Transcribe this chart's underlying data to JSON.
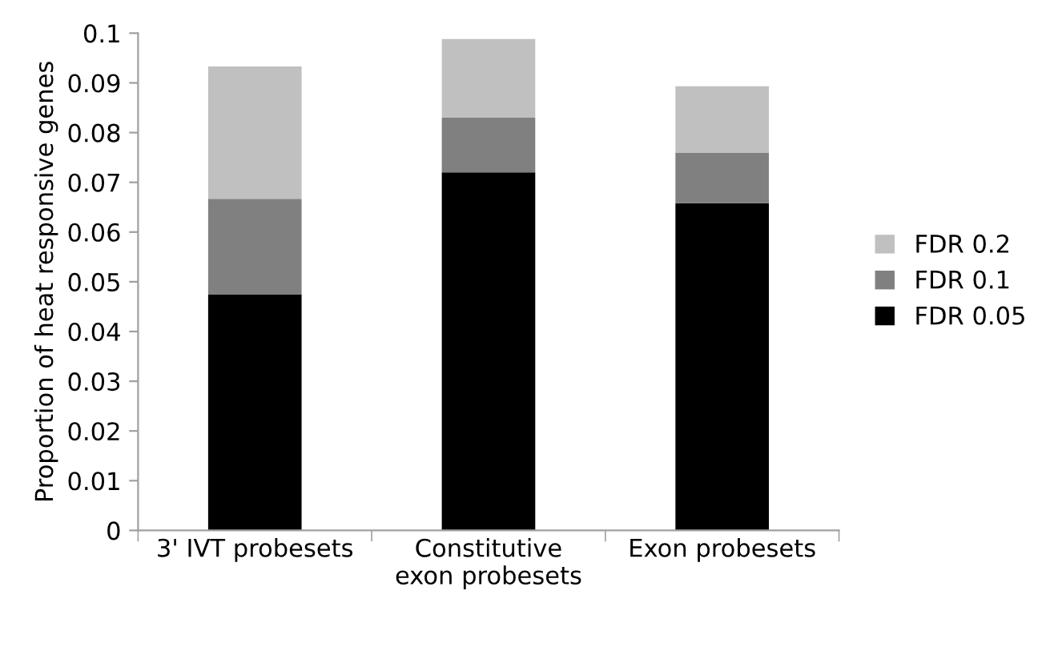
{
  "chart_data": {
    "type": "bar",
    "stacked": true,
    "ylabel": "Proportion of heat responsive genes",
    "categories": [
      "3' IVT probesets",
      "Constitutive\nexon probesets",
      "Exon probesets"
    ],
    "series": [
      {
        "name": "FDR 0.05",
        "color": "#000000",
        "values": [
          0.0475,
          0.072,
          0.0658
        ]
      },
      {
        "name": "FDR 0.1",
        "color": "#808080",
        "values": [
          0.0192,
          0.011,
          0.0102
        ]
      },
      {
        "name": "FDR 0.2",
        "color": "#c0c0c0",
        "values": [
          0.0266,
          0.0158,
          0.0133
        ]
      }
    ],
    "ylim": [
      0,
      0.1
    ],
    "yticks": [
      0,
      0.01,
      0.02,
      0.03,
      0.04,
      0.05,
      0.06,
      0.07,
      0.08,
      0.09,
      0.1
    ],
    "legend": "right",
    "grid": false
  }
}
